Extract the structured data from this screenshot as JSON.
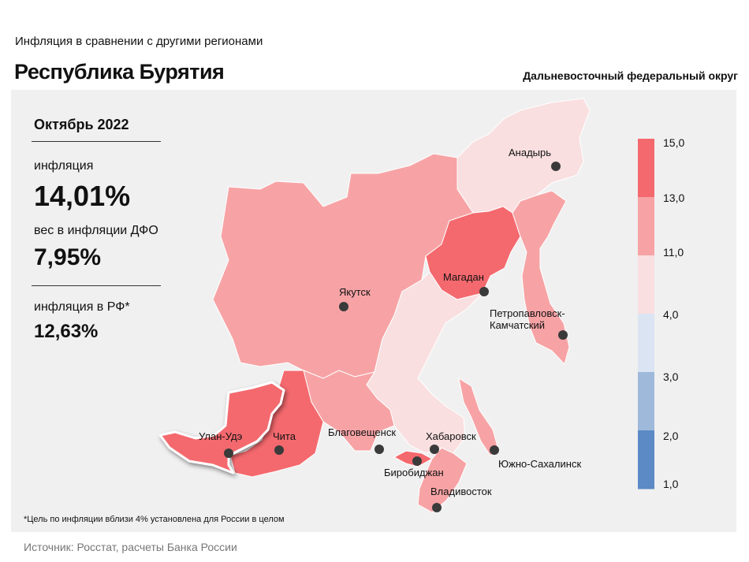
{
  "header": {
    "subtitle": "Инфляция  в сравнении  с другими  регионами",
    "title": "Республика Бурятия",
    "district": "Дальневосточный федеральный округ"
  },
  "stats": {
    "period": "Октябрь 2022",
    "inflation_label": "инфляция",
    "inflation_value": "14,01%",
    "weight_label": "вес в инфляции  ДФО",
    "weight_value": "7,95%",
    "rf_label": "инфляция  в РФ*",
    "rf_value": "12,63%"
  },
  "legend": {
    "labels": [
      "15,0",
      "13,0",
      "11,0",
      "4,0",
      "3,0",
      "2,0",
      "1,0"
    ],
    "colors": [
      "#f4696e",
      "#f7a3a5",
      "#f9dfe0",
      "#dbe4f3",
      "#9fb9db",
      "#5b8ac5"
    ]
  },
  "cities": {
    "anadyr": "Анадырь",
    "yakutsk": "Якутск",
    "magadan": "Магадан",
    "petropavlovsk": "Петропавловск-\nКамчатский",
    "ulan_ude": "Улан-Удэ",
    "chita": "Чита",
    "blagoveshchensk": "Благовещенск",
    "khabarovsk": "Хабаровск",
    "birobidzhan": "Биробиджан",
    "yuzhno": "Южно-Сахалинск",
    "vladivostok": "Владивосток"
  },
  "region_colors": {
    "high": "#f4696e",
    "mid": "#f7a3a5",
    "low": "#f9dfe0"
  },
  "footnote": "*Цель по инфляции вблизи 4% установлена для России в целом",
  "source": "Источник: Росстат, расчеты Банка России"
}
